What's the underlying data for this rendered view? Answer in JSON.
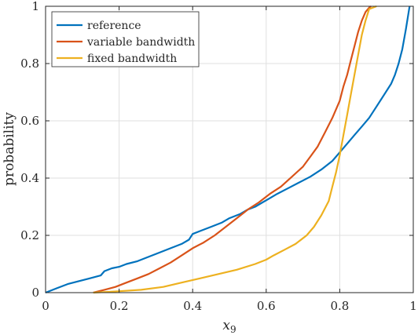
{
  "chart_data": {
    "type": "line",
    "title": "",
    "xlabel_base": "x",
    "xlabel_sub": "9",
    "ylabel": "probability",
    "xlim": [
      0,
      1
    ],
    "ylim": [
      0,
      1
    ],
    "x_ticks": [
      0,
      0.2,
      0.4,
      0.6,
      0.8,
      1
    ],
    "x_tick_labels": [
      "0",
      "0.2",
      "0.4",
      "0.6",
      "0.8",
      "1"
    ],
    "y_ticks": [
      0,
      0.2,
      0.4,
      0.6,
      0.8,
      1
    ],
    "y_tick_labels": [
      "0",
      "0.2",
      "0.4",
      "0.6",
      "0.8",
      "1"
    ],
    "grid": true,
    "legend_position": "top-left",
    "series": [
      {
        "name": "reference",
        "color": "#0072BD",
        "x": [
          0,
          0.03,
          0.06,
          0.09,
          0.12,
          0.15,
          0.16,
          0.18,
          0.2,
          0.22,
          0.25,
          0.28,
          0.31,
          0.34,
          0.37,
          0.39,
          0.4,
          0.42,
          0.45,
          0.48,
          0.5,
          0.53,
          0.55,
          0.57,
          0.59,
          0.61,
          0.63,
          0.66,
          0.69,
          0.72,
          0.75,
          0.78,
          0.8,
          0.82,
          0.84,
          0.86,
          0.88,
          0.9,
          0.92,
          0.94,
          0.95,
          0.96,
          0.97,
          0.98,
          0.99
        ],
        "y": [
          0,
          0.015,
          0.03,
          0.04,
          0.05,
          0.06,
          0.075,
          0.085,
          0.09,
          0.1,
          0.11,
          0.125,
          0.14,
          0.155,
          0.17,
          0.185,
          0.205,
          0.215,
          0.23,
          0.245,
          0.26,
          0.275,
          0.29,
          0.3,
          0.315,
          0.33,
          0.345,
          0.365,
          0.385,
          0.405,
          0.43,
          0.46,
          0.49,
          0.52,
          0.55,
          0.58,
          0.61,
          0.65,
          0.69,
          0.73,
          0.76,
          0.8,
          0.85,
          0.92,
          1.0
        ]
      },
      {
        "name": "variable bandwidth",
        "color": "#D95319",
        "x": [
          0.13,
          0.16,
          0.19,
          0.22,
          0.25,
          0.28,
          0.31,
          0.34,
          0.37,
          0.4,
          0.43,
          0.46,
          0.49,
          0.52,
          0.55,
          0.58,
          0.61,
          0.64,
          0.67,
          0.7,
          0.72,
          0.74,
          0.76,
          0.78,
          0.8,
          0.81,
          0.82,
          0.83,
          0.84,
          0.85,
          0.86,
          0.87,
          0.88,
          0.885
        ],
        "y": [
          0,
          0.01,
          0.02,
          0.035,
          0.05,
          0.065,
          0.085,
          0.105,
          0.13,
          0.155,
          0.175,
          0.2,
          0.23,
          0.26,
          0.29,
          0.315,
          0.345,
          0.37,
          0.405,
          0.44,
          0.475,
          0.51,
          0.56,
          0.61,
          0.67,
          0.72,
          0.76,
          0.81,
          0.86,
          0.91,
          0.95,
          0.98,
          0.995,
          1.0
        ]
      },
      {
        "name": "fixed bandwidth",
        "color": "#EDB120",
        "x": [
          0.13,
          0.2,
          0.26,
          0.32,
          0.37,
          0.42,
          0.47,
          0.52,
          0.57,
          0.6,
          0.62,
          0.65,
          0.68,
          0.71,
          0.73,
          0.75,
          0.77,
          0.78,
          0.79,
          0.8,
          0.81,
          0.82,
          0.83,
          0.84,
          0.85,
          0.86,
          0.87,
          0.88,
          0.9
        ],
        "y": [
          0,
          0.005,
          0.01,
          0.02,
          0.035,
          0.05,
          0.065,
          0.08,
          0.1,
          0.115,
          0.13,
          0.15,
          0.17,
          0.2,
          0.23,
          0.27,
          0.32,
          0.37,
          0.42,
          0.48,
          0.55,
          0.62,
          0.69,
          0.76,
          0.83,
          0.9,
          0.95,
          0.99,
          1.0
        ]
      }
    ]
  }
}
